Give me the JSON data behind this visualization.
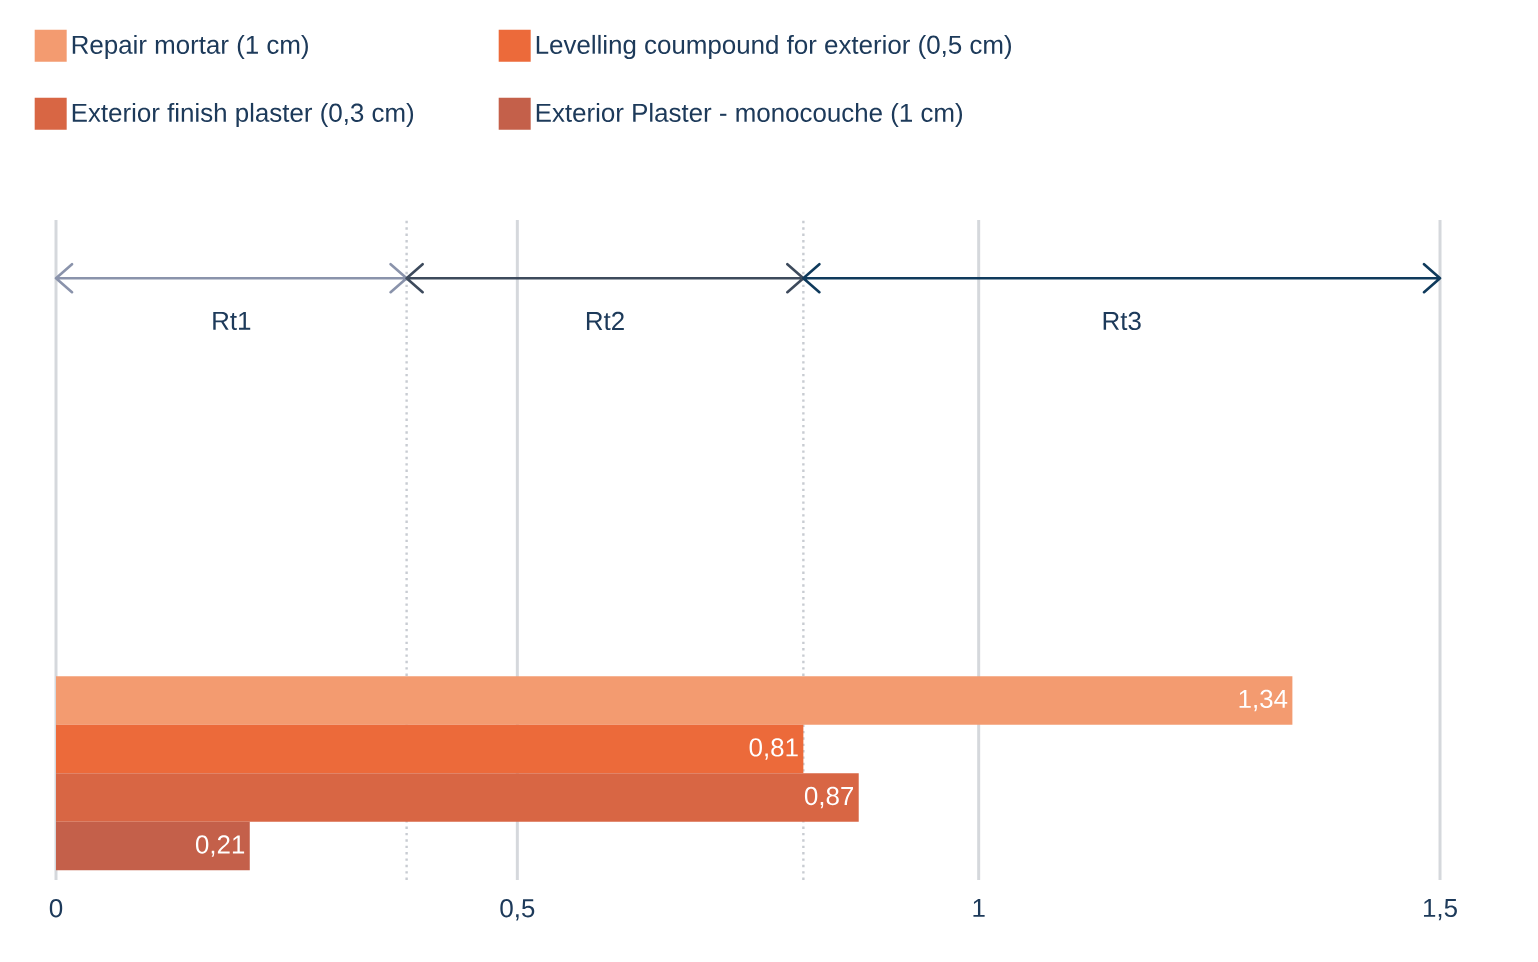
{
  "chart_data": {
    "type": "bar",
    "orientation": "horizontal",
    "categories": [
      null
    ],
    "series": [
      {
        "name": "Repair mortar (1 cm)",
        "color": "#f39b70",
        "values": [
          1.34
        ],
        "value_labels": [
          "1,34"
        ]
      },
      {
        "name": "Levelling coumpound for exterior (0,5 cm)",
        "color": "#ec6a3a",
        "values": [
          0.81
        ],
        "value_labels": [
          "0,81"
        ]
      },
      {
        "name": "Exterior finish plaster (0,3 cm)",
        "color": "#d86644",
        "values": [
          0.87
        ],
        "value_labels": [
          "0,87"
        ]
      },
      {
        "name": "Exterior Plaster - monocouche (1 cm)",
        "color": "#c4604a",
        "values": [
          0.21
        ],
        "value_labels": [
          "0,21"
        ]
      }
    ],
    "xlim": [
      0,
      1.5
    ],
    "xticks": [
      0,
      {
        "value": 0.5,
        "label": "0,5"
      },
      1,
      {
        "value": 1.5,
        "label": "1,5"
      }
    ],
    "grid": "x",
    "legend": "top",
    "ref_lines": [
      {
        "axis": "x",
        "value": 0.38,
        "line_style": "dotted",
        "color": "#c8ccd2"
      },
      {
        "axis": "x",
        "value": 0.81,
        "line_style": "dotted",
        "color": "#c8ccd2"
      }
    ],
    "annotations": [
      "Rt1",
      "Rt2",
      "Rt3"
    ]
  }
}
